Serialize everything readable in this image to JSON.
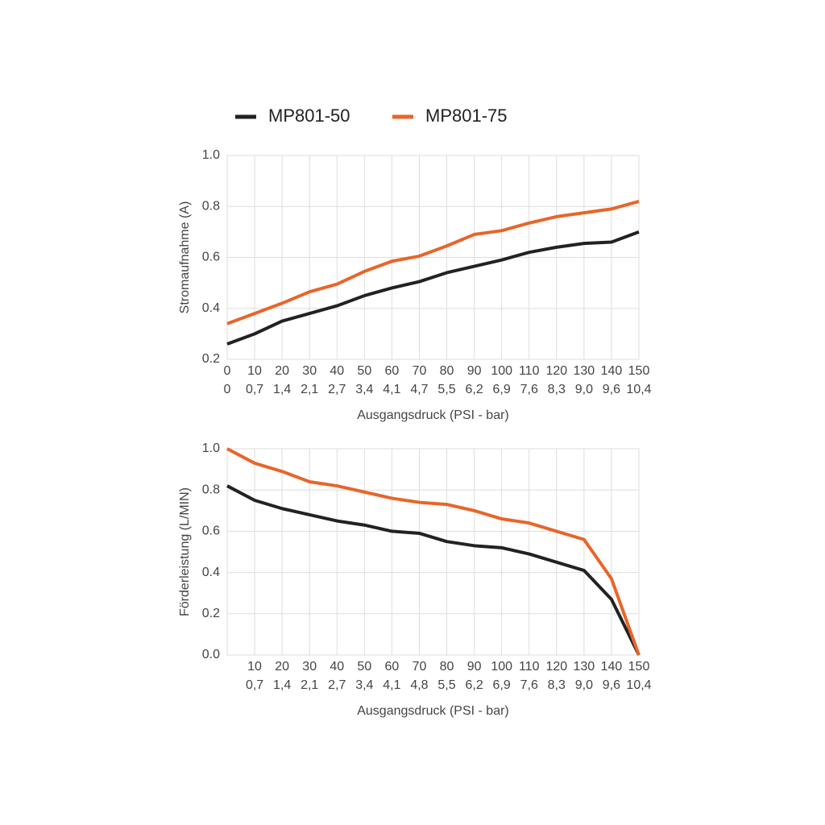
{
  "chart_data": [
    {
      "type": "line",
      "y_label": "Stromaufnahme (A)",
      "x_label": "Ausgangsdruck (PSI - bar)",
      "x": [
        0,
        10,
        20,
        30,
        40,
        50,
        60,
        70,
        80,
        90,
        100,
        110,
        120,
        130,
        140,
        150
      ],
      "xlim": [
        0,
        150
      ],
      "xticks": [
        0,
        10,
        20,
        30,
        40,
        50,
        60,
        70,
        80,
        90,
        100,
        110,
        120,
        130,
        140,
        150
      ],
      "xticks_bar": [
        "0",
        "0,7",
        "1,4",
        "2,1",
        "2,7",
        "3,4",
        "4,1",
        "4,7",
        "5,5",
        "6,2",
        "6,9",
        "7,6",
        "8,3",
        "9,0",
        "9,6",
        "10,4"
      ],
      "ylim": [
        0.2,
        1
      ],
      "yticks": [
        0.2,
        0.4,
        0.6,
        0.8,
        {
          "value": 1,
          "label": "1.0"
        }
      ],
      "grid": true,
      "series": [
        {
          "name": "MP801-50",
          "color": "#222222",
          "values": [
            0.26,
            0.3,
            0.35,
            0.38,
            0.41,
            0.45,
            0.48,
            0.505,
            0.54,
            0.565,
            0.59,
            0.62,
            0.64,
            0.655,
            0.66,
            0.7
          ]
        },
        {
          "name": "MP801-75",
          "color": "#e8652a",
          "values": [
            0.34,
            0.38,
            0.42,
            0.465,
            0.495,
            0.545,
            0.585,
            0.605,
            0.645,
            0.69,
            0.705,
            0.735,
            0.76,
            0.775,
            0.79,
            0.82
          ]
        }
      ]
    },
    {
      "type": "line",
      "y_label": "Förderleistung (L/MIN)",
      "x_label": "Ausgangsdruck (PSI - bar)",
      "x": [
        0,
        10,
        20,
        30,
        40,
        50,
        60,
        70,
        80,
        90,
        100,
        110,
        120,
        130,
        140,
        150
      ],
      "xlim": [
        0,
        150
      ],
      "xticks": [
        10,
        20,
        30,
        40,
        50,
        60,
        70,
        80,
        90,
        100,
        110,
        120,
        130,
        140,
        150
      ],
      "xticks_bar": [
        "0,7",
        "1,4",
        "2,1",
        "2,7",
        "3,4",
        "4,1",
        "4,8",
        "5,5",
        "6,2",
        "6,9",
        "7,6",
        "8,3",
        "9,0",
        "9,6",
        "10,4"
      ],
      "ylim": [
        0,
        1
      ],
      "yticks": [
        {
          "value": 0,
          "label": "0.0"
        },
        0.2,
        0.4,
        0.6,
        0.8,
        {
          "value": 1,
          "label": "1.0"
        }
      ],
      "grid": true,
      "series": [
        {
          "color": "#222222",
          "values": [
            0.82,
            0.75,
            0.71,
            0.68,
            0.65,
            0.63,
            0.6,
            0.59,
            0.55,
            0.53,
            0.52,
            0.49,
            0.45,
            0.41,
            0.27,
            0
          ]
        },
        {
          "color": "#e8652a",
          "values": [
            1.0,
            0.93,
            0.89,
            0.84,
            0.82,
            0.79,
            0.76,
            0.74,
            0.73,
            0.7,
            0.66,
            0.64,
            0.6,
            0.56,
            0.37,
            0
          ]
        }
      ]
    }
  ]
}
